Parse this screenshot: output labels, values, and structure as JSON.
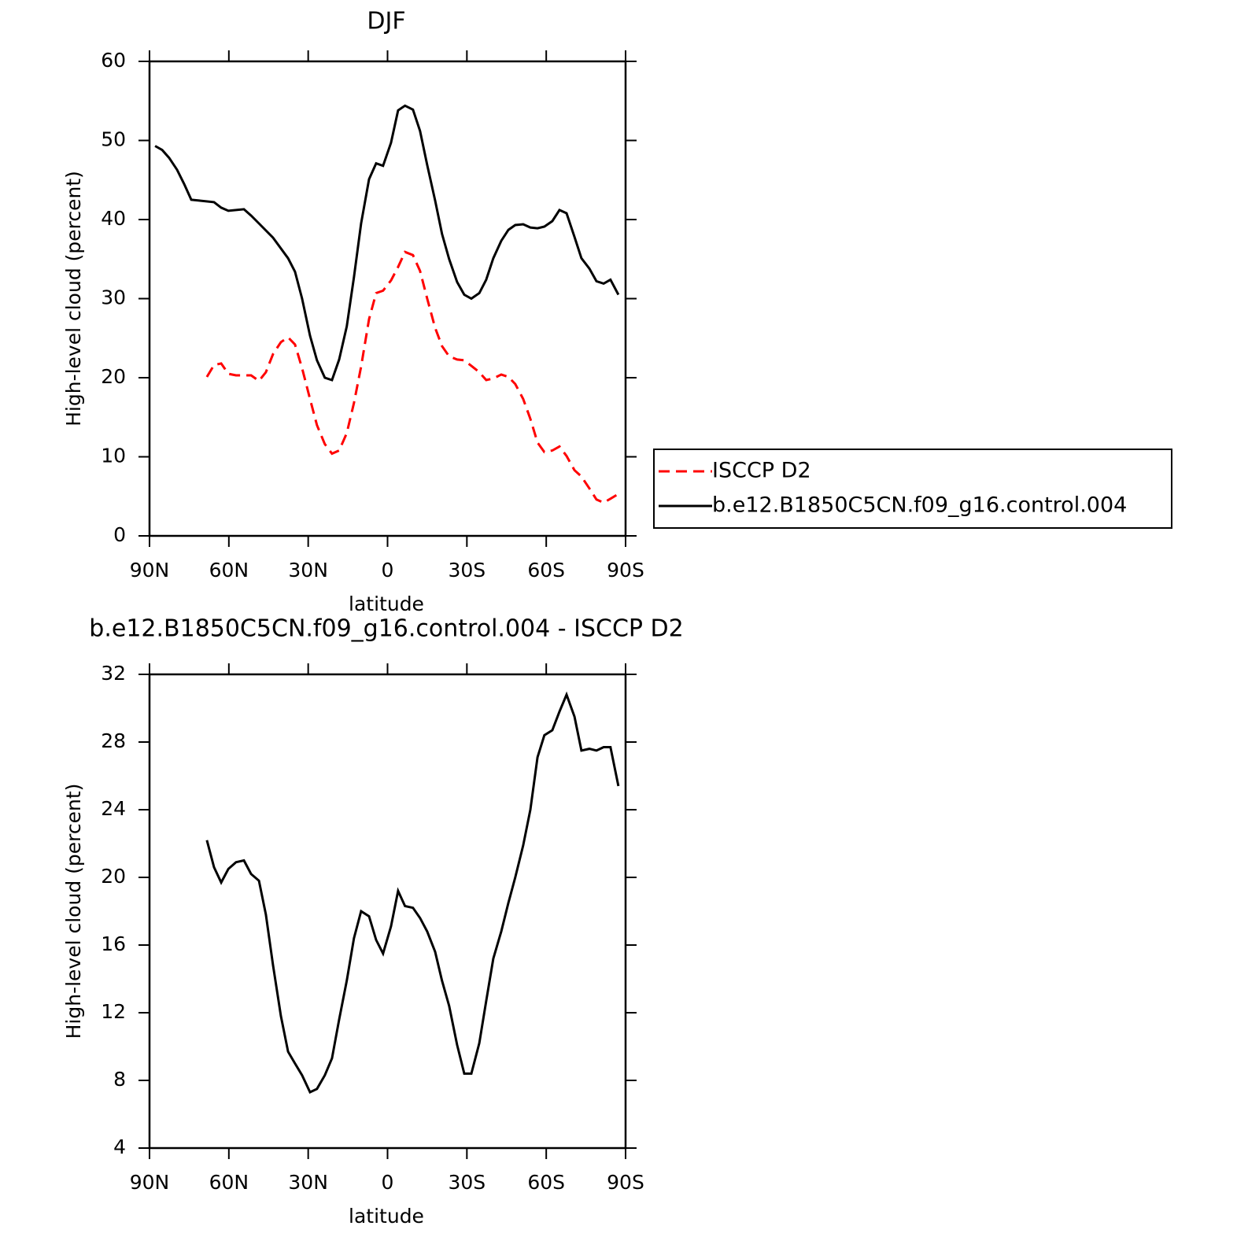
{
  "chart_data": [
    {
      "type": "line",
      "title": "DJF",
      "xlabel": "latitude",
      "ylabel": "High-level cloud (percent)",
      "xlim": [
        90,
        -90
      ],
      "xticks": [
        {
          "value": 90,
          "label": "90N"
        },
        {
          "value": 60,
          "label": "60N"
        },
        {
          "value": 30,
          "label": "30N"
        },
        0,
        {
          "value": -30,
          "label": "30S"
        },
        {
          "value": -60,
          "label": "60S"
        },
        {
          "value": -90,
          "label": "90S"
        }
      ],
      "ylim": [
        0,
        60
      ],
      "yticks": [
        0,
        10,
        20,
        30,
        40,
        50,
        60
      ],
      "legend": "right",
      "series": [
        {
          "name": "ISCCP D2",
          "color": "#ff0000",
          "linestyle": "dashed",
          "x": [
            68.3,
            65.6,
            62.9,
            60.2,
            57.3,
            51.6,
            48.6,
            46.0,
            43.3,
            40.3,
            37.6,
            35.0,
            32.3,
            29.3,
            26.7,
            23.7,
            21.0,
            18.3,
            15.4,
            12.7,
            10.0,
            7.0,
            4.3,
            1.7,
            -1.3,
            -4.0,
            -6.6,
            -9.6,
            -12.3,
            -15.0,
            -18.0,
            -20.6,
            -23.3,
            -26.3,
            -29.0,
            -31.7,
            -34.7,
            -37.3,
            -40.0,
            -43.0,
            -45.7,
            -48.3,
            -51.3,
            -54.0,
            -56.7,
            -59.3,
            -62.3,
            -65.0,
            -67.7,
            -70.7,
            -73.3,
            -76.3,
            -79.0,
            -81.7,
            -84.3,
            -87.3
          ],
          "values": [
            20.1,
            21.6,
            21.8,
            20.5,
            20.3,
            20.3,
            19.6,
            20.7,
            23.0,
            24.5,
            25.1,
            24.2,
            21.2,
            17.3,
            14.0,
            11.6,
            10.4,
            10.8,
            13.0,
            16.8,
            21.4,
            27.4,
            30.7,
            31.0,
            32.3,
            34.0,
            35.9,
            35.5,
            33.5,
            30.0,
            26.3,
            24.0,
            22.7,
            22.3,
            22.2,
            21.5,
            20.7,
            19.7,
            19.9,
            20.4,
            20.1,
            19.2,
            17.3,
            14.8,
            11.8,
            10.6,
            10.8,
            11.3,
            10.1,
            8.3,
            7.5,
            6.0,
            4.6,
            4.2,
            4.7,
            5.3
          ]
        },
        {
          "name": "b.e12.B1850C5CN.f09_g16.control.004",
          "color": "#000000",
          "linestyle": "solid",
          "x": [
            87.9,
            85.2,
            82.6,
            79.6,
            76.9,
            74.2,
            71.2,
            65.6,
            62.9,
            60.2,
            54.3,
            51.6,
            48.6,
            43.3,
            37.6,
            35.0,
            32.3,
            29.3,
            26.7,
            23.7,
            21.0,
            18.3,
            15.4,
            12.7,
            10.0,
            7.0,
            4.3,
            1.7,
            -1.3,
            -4.0,
            -6.6,
            -9.6,
            -12.3,
            -15.0,
            -18.0,
            -20.6,
            -23.3,
            -26.3,
            -29.0,
            -31.7,
            -34.7,
            -37.3,
            -40.0,
            -43.0,
            -45.7,
            -48.3,
            -51.3,
            -54.0,
            -56.7,
            -59.3,
            -62.3,
            -65.0,
            -67.7,
            -70.7,
            -73.3,
            -76.3,
            -79.0,
            -81.7,
            -84.3,
            -87.3
          ],
          "values": [
            49.3,
            48.8,
            47.8,
            46.3,
            44.5,
            42.5,
            42.4,
            42.2,
            41.5,
            41.1,
            41.3,
            40.5,
            39.5,
            37.7,
            35.1,
            33.4,
            30.0,
            25.3,
            22.2,
            20.0,
            19.7,
            22.3,
            26.5,
            32.7,
            39.5,
            45.1,
            47.1,
            46.8,
            49.7,
            53.8,
            54.4,
            53.9,
            51.2,
            46.9,
            42.4,
            38.2,
            35.0,
            32.1,
            30.5,
            30.0,
            30.7,
            32.4,
            35.1,
            37.3,
            38.7,
            39.3,
            39.4,
            39.0,
            38.9,
            39.1,
            39.8,
            41.2,
            40.8,
            37.8,
            35.1,
            33.8,
            32.2,
            31.9,
            32.4,
            30.5
          ]
        }
      ]
    },
    {
      "type": "line",
      "title": "b.e12.B1850C5CN.f09_g16.control.004 - ISCCP D2",
      "xlabel": "latitude",
      "ylabel": "High-level cloud (percent)",
      "xlim": [
        90,
        -90
      ],
      "xticks": [
        {
          "value": 90,
          "label": "90N"
        },
        {
          "value": 60,
          "label": "60N"
        },
        {
          "value": 30,
          "label": "30N"
        },
        0,
        {
          "value": -30,
          "label": "30S"
        },
        {
          "value": -60,
          "label": "60S"
        },
        {
          "value": -90,
          "label": "90S"
        }
      ],
      "ylim": [
        4,
        32
      ],
      "yticks": [
        4,
        8,
        12,
        16,
        20,
        24,
        28,
        32
      ],
      "series": [
        {
          "color": "#000000",
          "linestyle": "solid",
          "x": [
            68.3,
            65.6,
            62.9,
            60.2,
            57.3,
            54.3,
            51.6,
            48.6,
            46.0,
            43.3,
            40.3,
            37.6,
            35.0,
            32.3,
            29.3,
            26.7,
            23.7,
            21.0,
            18.3,
            15.4,
            12.7,
            10.0,
            7.0,
            4.3,
            1.7,
            -1.3,
            -4.0,
            -6.6,
            -9.6,
            -12.3,
            -15.0,
            -18.0,
            -20.6,
            -23.3,
            -26.3,
            -29.0,
            -31.7,
            -34.7,
            -37.3,
            -40.0,
            -43.0,
            -45.7,
            -48.3,
            -51.3,
            -54.0,
            -56.7,
            -59.3,
            -62.3,
            -65.0,
            -67.7,
            -70.7,
            -73.3,
            -76.3,
            -79.0,
            -81.7,
            -84.3,
            -87.3
          ],
          "values": [
            22.2,
            20.6,
            19.7,
            20.5,
            20.9,
            21.0,
            20.2,
            19.8,
            17.8,
            14.8,
            11.8,
            9.7,
            9.0,
            8.3,
            7.3,
            7.5,
            8.3,
            9.3,
            11.6,
            13.9,
            16.4,
            18.0,
            17.7,
            16.3,
            15.5,
            17.1,
            19.2,
            18.3,
            18.2,
            17.6,
            16.8,
            15.6,
            13.9,
            12.4,
            10.1,
            8.4,
            8.4,
            10.2,
            12.7,
            15.2,
            16.8,
            18.5,
            20.0,
            21.9,
            24.0,
            27.1,
            28.4,
            28.7,
            29.8,
            30.8,
            29.5,
            27.5,
            27.6,
            27.5,
            27.7,
            27.7,
            25.4
          ]
        }
      ]
    }
  ]
}
